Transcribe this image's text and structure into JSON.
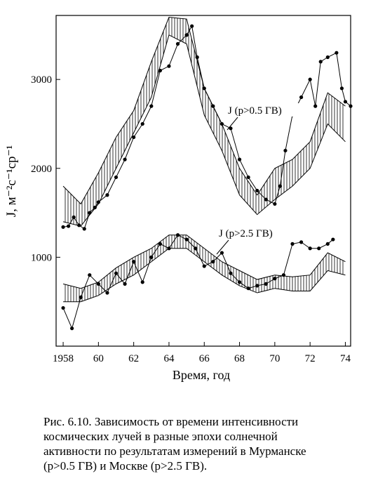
{
  "chart_data": {
    "type": "line",
    "y_label": "J, м⁻²с⁻¹ср⁻¹",
    "x_label": "Время, год",
    "xlim": [
      1957.6,
      1974.3
    ],
    "ylim": [
      0,
      3720
    ],
    "xticks": [
      {
        "value": 1958,
        "label": "1958"
      },
      {
        "value": 1960,
        "label": "60"
      },
      {
        "value": 1962,
        "label": "62"
      },
      {
        "value": 1964,
        "label": "64"
      },
      {
        "value": 1966,
        "label": "66"
      },
      {
        "value": 1968,
        "label": "68"
      },
      {
        "value": 1970,
        "label": "70"
      },
      {
        "value": 1972,
        "label": "72"
      },
      {
        "value": 1974,
        "label": "74"
      }
    ],
    "yticks": [
      1000,
      2000,
      3000
    ],
    "color": "#000000",
    "series": [
      {
        "name": "J (p>0.5 ГВ)",
        "x": [
          1958.0,
          1958.3,
          1958.6,
          1958.9,
          1959.2,
          1959.5,
          1959.8,
          1960.0,
          1960.5,
          1961.0,
          1961.5,
          1962.0,
          1962.5,
          1963.0,
          1963.5,
          1964.0,
          1964.5,
          1965.0,
          1965.3,
          1965.6,
          1966.0,
          1966.5,
          1967.0,
          1967.5,
          1968.0,
          1968.5,
          1969.0,
          1969.5,
          1970.0,
          1970.3,
          1970.6,
          1971.0,
          1971.5,
          1972.0,
          1972.3,
          1972.6,
          1973.0,
          1973.5,
          1973.8,
          1974.0,
          1974.3
        ],
        "values": [
          1340,
          1350,
          1450,
          1360,
          1320,
          1500,
          1560,
          1620,
          1700,
          1900,
          2100,
          2350,
          2500,
          2700,
          3100,
          3150,
          3400,
          3500,
          3600,
          3250,
          2900,
          2700,
          2500,
          2450,
          2100,
          1900,
          1750,
          1650,
          1600,
          1800,
          2200,
          2600,
          2800,
          3000,
          2700,
          3200,
          3250,
          3300,
          2900,
          2750,
          2700
        ],
        "band_x": [
          1958,
          1959,
          1960,
          1961,
          1962,
          1963,
          1964,
          1965,
          1966,
          1967,
          1968,
          1969,
          1970,
          1971,
          1972,
          1973,
          1974
        ],
        "band_lower": [
          1400,
          1350,
          1600,
          2000,
          2400,
          2800,
          3500,
          3400,
          2600,
          2200,
          1700,
          1480,
          1650,
          1800,
          2000,
          2500,
          2300
        ],
        "band_upper": [
          1800,
          1600,
          1950,
          2350,
          2650,
          3200,
          3700,
          3680,
          2900,
          2500,
          2000,
          1700,
          2000,
          2100,
          2300,
          2850,
          2700
        ]
      },
      {
        "name": "J (p>2.5 ГВ)",
        "x": [
          1958.0,
          1958.5,
          1959.0,
          1959.5,
          1960.0,
          1960.5,
          1961.0,
          1961.5,
          1962.0,
          1962.5,
          1963.0,
          1963.5,
          1964.0,
          1964.5,
          1965.0,
          1965.5,
          1966.0,
          1966.5,
          1967.0,
          1967.5,
          1968.0,
          1968.5,
          1969.0,
          1969.5,
          1970.0,
          1970.5,
          1971.0,
          1971.5,
          1972.0,
          1972.5,
          1973.0,
          1973.3
        ],
        "values": [
          430,
          200,
          550,
          800,
          700,
          600,
          820,
          700,
          950,
          720,
          1000,
          1150,
          1100,
          1250,
          1200,
          1100,
          900,
          950,
          1050,
          820,
          720,
          650,
          680,
          700,
          760,
          800,
          1150,
          1170,
          1100,
          1100,
          1150,
          1200
        ],
        "band_x": [
          1958,
          1959,
          1960,
          1961,
          1962,
          1963,
          1964,
          1965,
          1966,
          1967,
          1968,
          1969,
          1970,
          1971,
          1972,
          1973,
          1974
        ],
        "band_lower": [
          500,
          500,
          570,
          700,
          800,
          950,
          1100,
          1100,
          950,
          800,
          680,
          600,
          650,
          620,
          620,
          850,
          800
        ],
        "band_upper": [
          700,
          650,
          720,
          880,
          1000,
          1100,
          1250,
          1250,
          1100,
          950,
          850,
          750,
          800,
          780,
          800,
          1050,
          950
        ]
      }
    ],
    "caption": [
      "Рис. 6.10. Зависимость от времени интенсивности",
      "космических лучей в разные эпохи солнечной",
      "активности по результатам измерений в Мурманске",
      "(p>0.5 ГВ) и Москве (p>2.5 ГВ)."
    ]
  }
}
